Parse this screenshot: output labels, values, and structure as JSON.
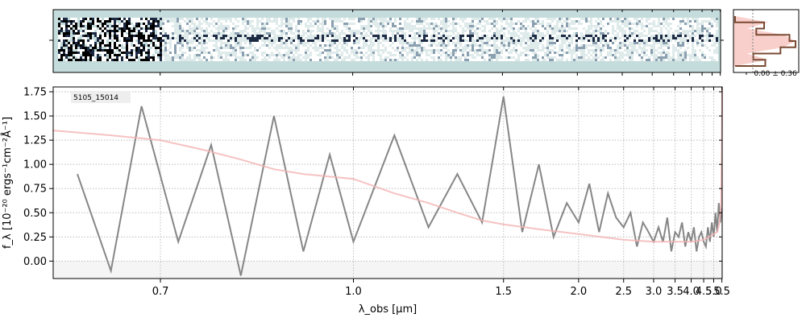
{
  "chart_data": [
    {
      "panel": "2d-spectrum",
      "type": "heatmap",
      "colormap": [
        "#c5dcdc",
        "#ffffff",
        "#1d2a44",
        "#000000"
      ],
      "background_color": "#c5dcdc",
      "x_scale": "reciprocal",
      "xlim": [
        0.6,
        5.52
      ]
    },
    {
      "panel": "profile",
      "type": "line",
      "xtick_label": "0.00 ± 0.36",
      "fill_color": "#f2a7a0",
      "line_color": "#7a4a33",
      "series": [
        {
          "values": [
            0.0,
            0.55,
            0.2,
            0.8,
            1.0,
            0.8,
            0.2,
            0.55,
            0.0
          ]
        },
        {
          "values": [
            0.0,
            0.48,
            0.35,
            0.9,
            1.0,
            0.75,
            0.3,
            0.5,
            0.0
          ]
        }
      ]
    },
    {
      "panel": "1d-spectrum",
      "type": "line",
      "label": "5105_15014",
      "xlabel": "λ_obs [μm]",
      "ylabel": "f_λ [10⁻²⁰ ergs⁻¹cm⁻²Å⁻¹]",
      "x_scale": "reciprocal",
      "xlim": [
        0.6,
        5.52
      ],
      "ylim": [
        -0.18,
        1.8
      ],
      "grid": true,
      "xticks": [
        0.7,
        1.0,
        1.5,
        2.0,
        2.5,
        3.0,
        3.5,
        4.0,
        4.5,
        5.0,
        5.5
      ],
      "xtick_labels": [
        "0.7",
        "1.0",
        "1.5",
        "2.0",
        "2.5",
        "3.0",
        "3.5",
        "4.0",
        "4.5",
        "5.0",
        "5.5"
      ],
      "yticks": [
        0.0,
        0.25,
        0.5,
        0.75,
        1.0,
        1.25,
        1.5,
        1.75
      ],
      "ytick_labels": [
        "0.00",
        "0.25",
        "0.50",
        "0.75",
        "1.00",
        "1.25",
        "1.50",
        "1.75"
      ],
      "series": [
        {
          "color": "#808080",
          "x": [
            0.62,
            0.65,
            0.68,
            0.72,
            0.76,
            0.8,
            0.85,
            0.9,
            0.95,
            1.0,
            1.1,
            1.2,
            1.3,
            1.4,
            1.5,
            1.6,
            1.7,
            1.8,
            1.9,
            2.0,
            2.1,
            2.2,
            2.3,
            2.4,
            2.5,
            2.6,
            2.7,
            2.8,
            2.9,
            3.0,
            3.1,
            3.2,
            3.3,
            3.4,
            3.5,
            3.6,
            3.7,
            3.8,
            3.9,
            4.0,
            4.1,
            4.2,
            4.3,
            4.4,
            4.5,
            4.6,
            4.7,
            4.8,
            4.9,
            5.0,
            5.1,
            5.2,
            5.3,
            5.4,
            5.5
          ],
          "y": [
            0.9,
            -0.1,
            1.6,
            0.2,
            1.2,
            -0.15,
            1.5,
            0.1,
            1.1,
            0.2,
            1.3,
            0.35,
            0.9,
            0.4,
            1.7,
            0.3,
            1.0,
            0.25,
            0.6,
            0.4,
            0.8,
            0.3,
            0.7,
            0.45,
            0.35,
            0.5,
            0.15,
            0.4,
            0.3,
            0.2,
            0.35,
            0.2,
            0.45,
            0.1,
            0.3,
            0.25,
            0.4,
            0.15,
            0.3,
            0.2,
            0.35,
            0.1,
            0.25,
            0.3,
            0.2,
            0.15,
            0.35,
            0.2,
            0.4,
            0.25,
            0.5,
            0.3,
            0.6,
            0.4,
            0.55
          ]
        },
        {
          "color": "#f4b3b3",
          "x": [
            0.6,
            0.65,
            0.7,
            0.75,
            0.8,
            0.85,
            0.9,
            1.0,
            1.1,
            1.2,
            1.3,
            1.4,
            1.5,
            1.7,
            2.0,
            2.5,
            3.0,
            3.5,
            4.0,
            4.5,
            5.0,
            5.2,
            5.35,
            5.45,
            5.5,
            5.52
          ],
          "y": [
            1.35,
            1.3,
            1.25,
            1.15,
            1.05,
            0.95,
            0.9,
            0.85,
            0.7,
            0.6,
            0.5,
            0.42,
            0.38,
            0.33,
            0.28,
            0.22,
            0.2,
            0.2,
            0.2,
            0.22,
            0.28,
            0.3,
            0.4,
            0.6,
            1.2,
            1.8
          ]
        }
      ]
    }
  ]
}
